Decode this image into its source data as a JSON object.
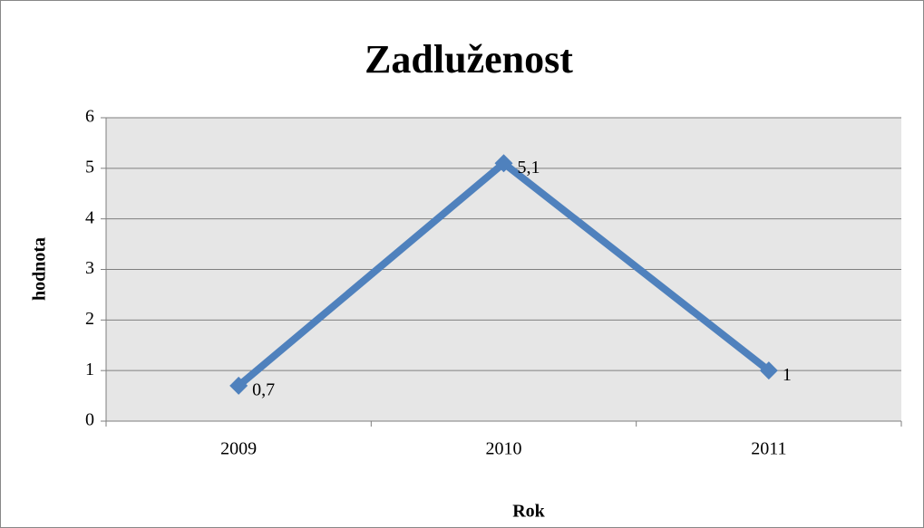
{
  "chart_data": {
    "type": "line",
    "title": "Zadluženost",
    "x_label": "Rok",
    "y_label": "hodnota",
    "categories": [
      "2009",
      "2010",
      "2011"
    ],
    "series": [
      {
        "name": "hodnota",
        "color": "#4f81bd",
        "values": [
          0.7,
          5.1,
          1
        ],
        "value_labels": [
          "0,7",
          "5,1",
          "1"
        ]
      }
    ],
    "ylim": [
      0,
      6
    ],
    "yticks": [
      0,
      1,
      2,
      3,
      4,
      5,
      6
    ],
    "grid": true
  }
}
